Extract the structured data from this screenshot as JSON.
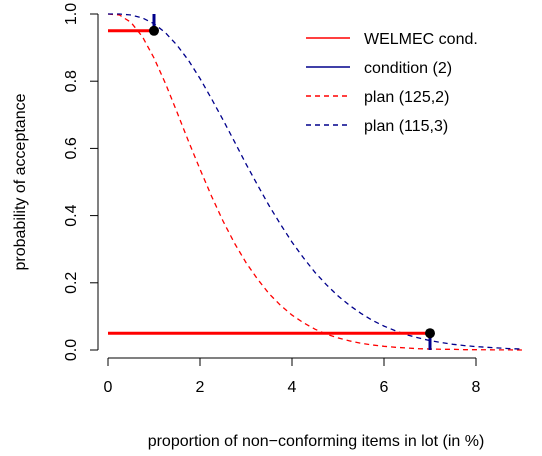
{
  "chart_data": {
    "type": "line",
    "xlabel": "proportion of non−conforming items in lot (in %)",
    "ylabel": "probability of acceptance",
    "xlim": [
      0,
      9
    ],
    "ylim": [
      0,
      1
    ],
    "x_ticks": [
      0,
      2,
      4,
      6,
      8
    ],
    "x_tick_labels": [
      "0",
      "2",
      "4",
      "6",
      "8"
    ],
    "y_ticks": [
      0.0,
      0.2,
      0.4,
      0.6,
      0.8,
      1.0
    ],
    "y_tick_labels": [
      "0.0",
      "0.2",
      "0.4",
      "0.6",
      "0.8",
      "1.0"
    ],
    "grid": false,
    "legend": {
      "position": "top-right",
      "entries": [
        {
          "label": "WELMEC cond.",
          "color": "#ff0000",
          "style": "solid"
        },
        {
          "label": "condition (2)",
          "color": "#00008b",
          "style": "solid"
        },
        {
          "label": "plan (125,2)",
          "color": "#ff0000",
          "style": "dashed"
        },
        {
          "label": "plan (115,3)",
          "color": "#00008b",
          "style": "dashed"
        }
      ]
    },
    "series": [
      {
        "name": "plan (125,2)",
        "color": "#ff0000",
        "style": "dashed",
        "x": [
          0,
          0.25,
          0.5,
          0.75,
          1,
          1.25,
          1.5,
          1.75,
          2,
          2.25,
          2.5,
          2.75,
          3,
          3.25,
          3.5,
          3.75,
          4,
          4.25,
          4.5,
          4.75,
          5,
          5.25,
          5.5,
          5.75,
          6,
          6.25,
          6.5,
          6.75,
          7,
          7.25,
          7.5,
          7.75,
          8,
          8.25,
          8.5,
          8.75,
          9
        ],
        "y": [
          1.0,
          0.997,
          0.975,
          0.932,
          0.869,
          0.793,
          0.708,
          0.621,
          0.538,
          0.458,
          0.384,
          0.318,
          0.26,
          0.211,
          0.168,
          0.133,
          0.104,
          0.081,
          0.062,
          0.047,
          0.036,
          0.027,
          0.02,
          0.015,
          0.011,
          0.008,
          0.006,
          0.004,
          0.003,
          0.002,
          0.002,
          0.001,
          0.001,
          0.0005,
          0.0003,
          0.0002,
          0.0001
        ]
      },
      {
        "name": "plan (115,3)",
        "color": "#00008b",
        "style": "dashed",
        "x": [
          0,
          0.25,
          0.5,
          0.75,
          1,
          1.25,
          1.5,
          1.75,
          2,
          2.25,
          2.5,
          2.75,
          3,
          3.25,
          3.5,
          3.75,
          4,
          4.25,
          4.5,
          4.75,
          5,
          5.25,
          5.5,
          5.75,
          6,
          6.25,
          6.5,
          6.75,
          7,
          7.25,
          7.5,
          7.75,
          8,
          8.25,
          8.5,
          8.75,
          9
        ],
        "y": [
          1.0,
          1.0,
          0.997,
          0.988,
          0.971,
          0.944,
          0.907,
          0.862,
          0.808,
          0.748,
          0.685,
          0.62,
          0.554,
          0.491,
          0.43,
          0.374,
          0.321,
          0.274,
          0.231,
          0.194,
          0.161,
          0.133,
          0.109,
          0.088,
          0.071,
          0.057,
          0.045,
          0.036,
          0.028,
          0.022,
          0.017,
          0.013,
          0.01,
          0.008,
          0.006,
          0.004,
          0.003
        ]
      }
    ],
    "welmec_condition": {
      "color": "#ff0000",
      "segments": [
        {
          "x": [
            0,
            1
          ],
          "y": [
            0.95,
            0.95
          ]
        },
        {
          "x": [
            0,
            7
          ],
          "y": [
            0.05,
            0.05
          ]
        }
      ],
      "points": [
        {
          "x": 1,
          "y": 0.95
        },
        {
          "x": 7,
          "y": 0.05
        }
      ]
    },
    "condition_2": {
      "color": "#00008b",
      "segments": [
        {
          "x": [
            1,
            1
          ],
          "y": [
            0.95,
            1.0
          ]
        },
        {
          "x": [
            7,
            7
          ],
          "y": [
            0.05,
            0.0
          ]
        }
      ]
    }
  }
}
